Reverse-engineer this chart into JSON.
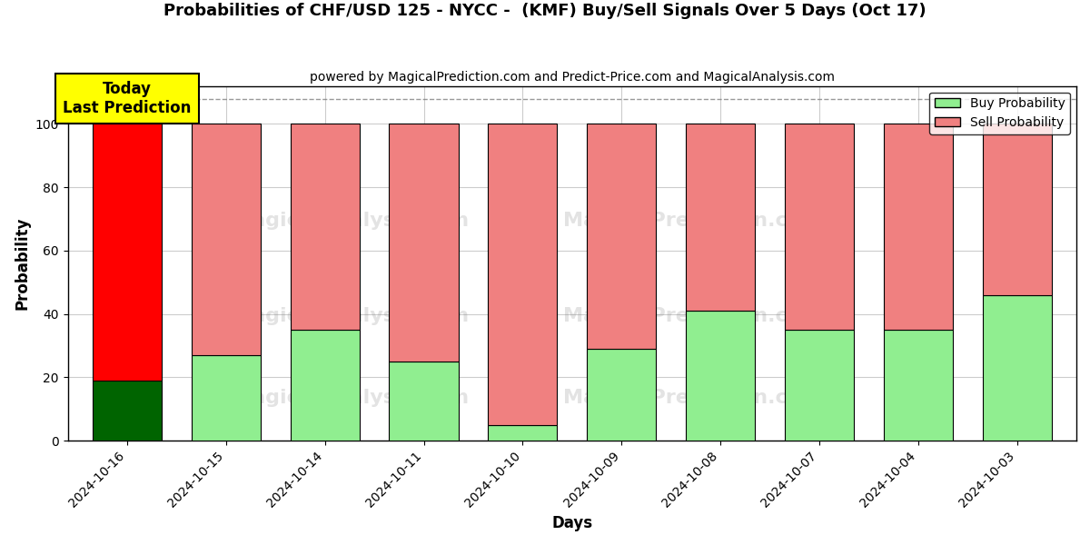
{
  "title": "Probabilities of CHF/USD 125 - NYCC -  (KMF) Buy/Sell Signals Over 5 Days (Oct 17)",
  "subtitle": "powered by MagicalPrediction.com and Predict-Price.com and MagicalAnalysis.com",
  "xlabel": "Days",
  "ylabel": "Probability",
  "categories": [
    "2024-10-16",
    "2024-10-15",
    "2024-10-14",
    "2024-10-11",
    "2024-10-10",
    "2024-10-09",
    "2024-10-08",
    "2024-10-07",
    "2024-10-04",
    "2024-10-03"
  ],
  "buy_values": [
    19,
    27,
    35,
    25,
    5,
    29,
    41,
    35,
    35,
    46
  ],
  "sell_values": [
    81,
    73,
    65,
    75,
    95,
    71,
    59,
    65,
    65,
    54
  ],
  "today_index": 0,
  "buy_color_today": "#006400",
  "sell_color_today": "#FF0000",
  "buy_color_normal": "#90EE90",
  "sell_color_normal": "#F08080",
  "today_label_bg": "#FFFF00",
  "today_label_text": "Today\nLast Prediction",
  "legend_buy": "Buy Probability",
  "legend_sell": "Sell Probability",
  "ylim": [
    0,
    112
  ],
  "yticks": [
    0,
    20,
    40,
    60,
    80,
    100
  ],
  "dashed_line_y": 108,
  "background_color": "#ffffff",
  "grid_color": "#cccccc",
  "figsize": [
    12.0,
    6.0
  ],
  "dpi": 100
}
